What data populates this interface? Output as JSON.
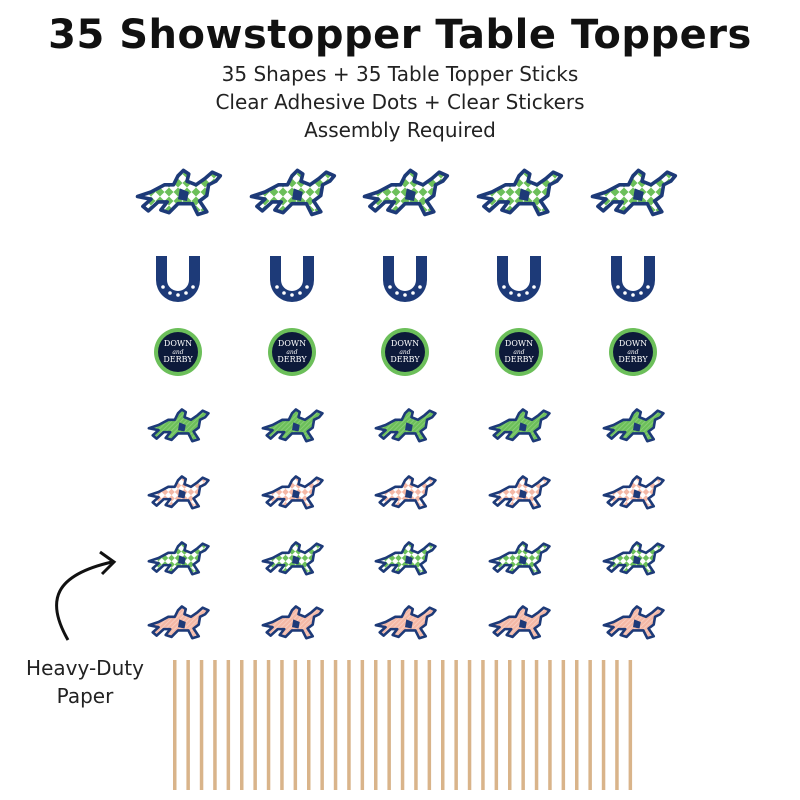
{
  "title": "35 Showstopper Table Toppers",
  "subtitles": [
    "35 Shapes + 35 Table Topper Sticks",
    "Clear Adhesive Dots + Clear Stickers",
    "Assembly Required"
  ],
  "callout": {
    "line1": "Heavy-Duty",
    "line2": "Paper",
    "icon": "curved-arrow-icon"
  },
  "colors": {
    "navy": "#1d3a78",
    "green": "#6cbf5a",
    "pink": "#f4b8a6",
    "stick": "#d9b48a"
  },
  "rows": [
    {
      "shape": "horse-icon",
      "fill": "green-diamond",
      "scale": 1.0
    },
    {
      "shape": "horseshoe-icon",
      "fill": "navy",
      "scale": 1.0
    },
    {
      "shape": "badge-icon",
      "fill": "navy",
      "scale": 1.0,
      "badge_text": [
        "DOWN",
        "and",
        "DERBY"
      ]
    },
    {
      "shape": "horse-icon",
      "fill": "green-stripe",
      "scale": 0.72
    },
    {
      "shape": "horse-icon",
      "fill": "pink-diamond",
      "scale": 0.72
    },
    {
      "shape": "horse-icon",
      "fill": "green-diamond",
      "scale": 0.72
    },
    {
      "shape": "horse-icon",
      "fill": "pink-stripe",
      "scale": 0.72
    }
  ],
  "columns": 5,
  "sticks": 35
}
